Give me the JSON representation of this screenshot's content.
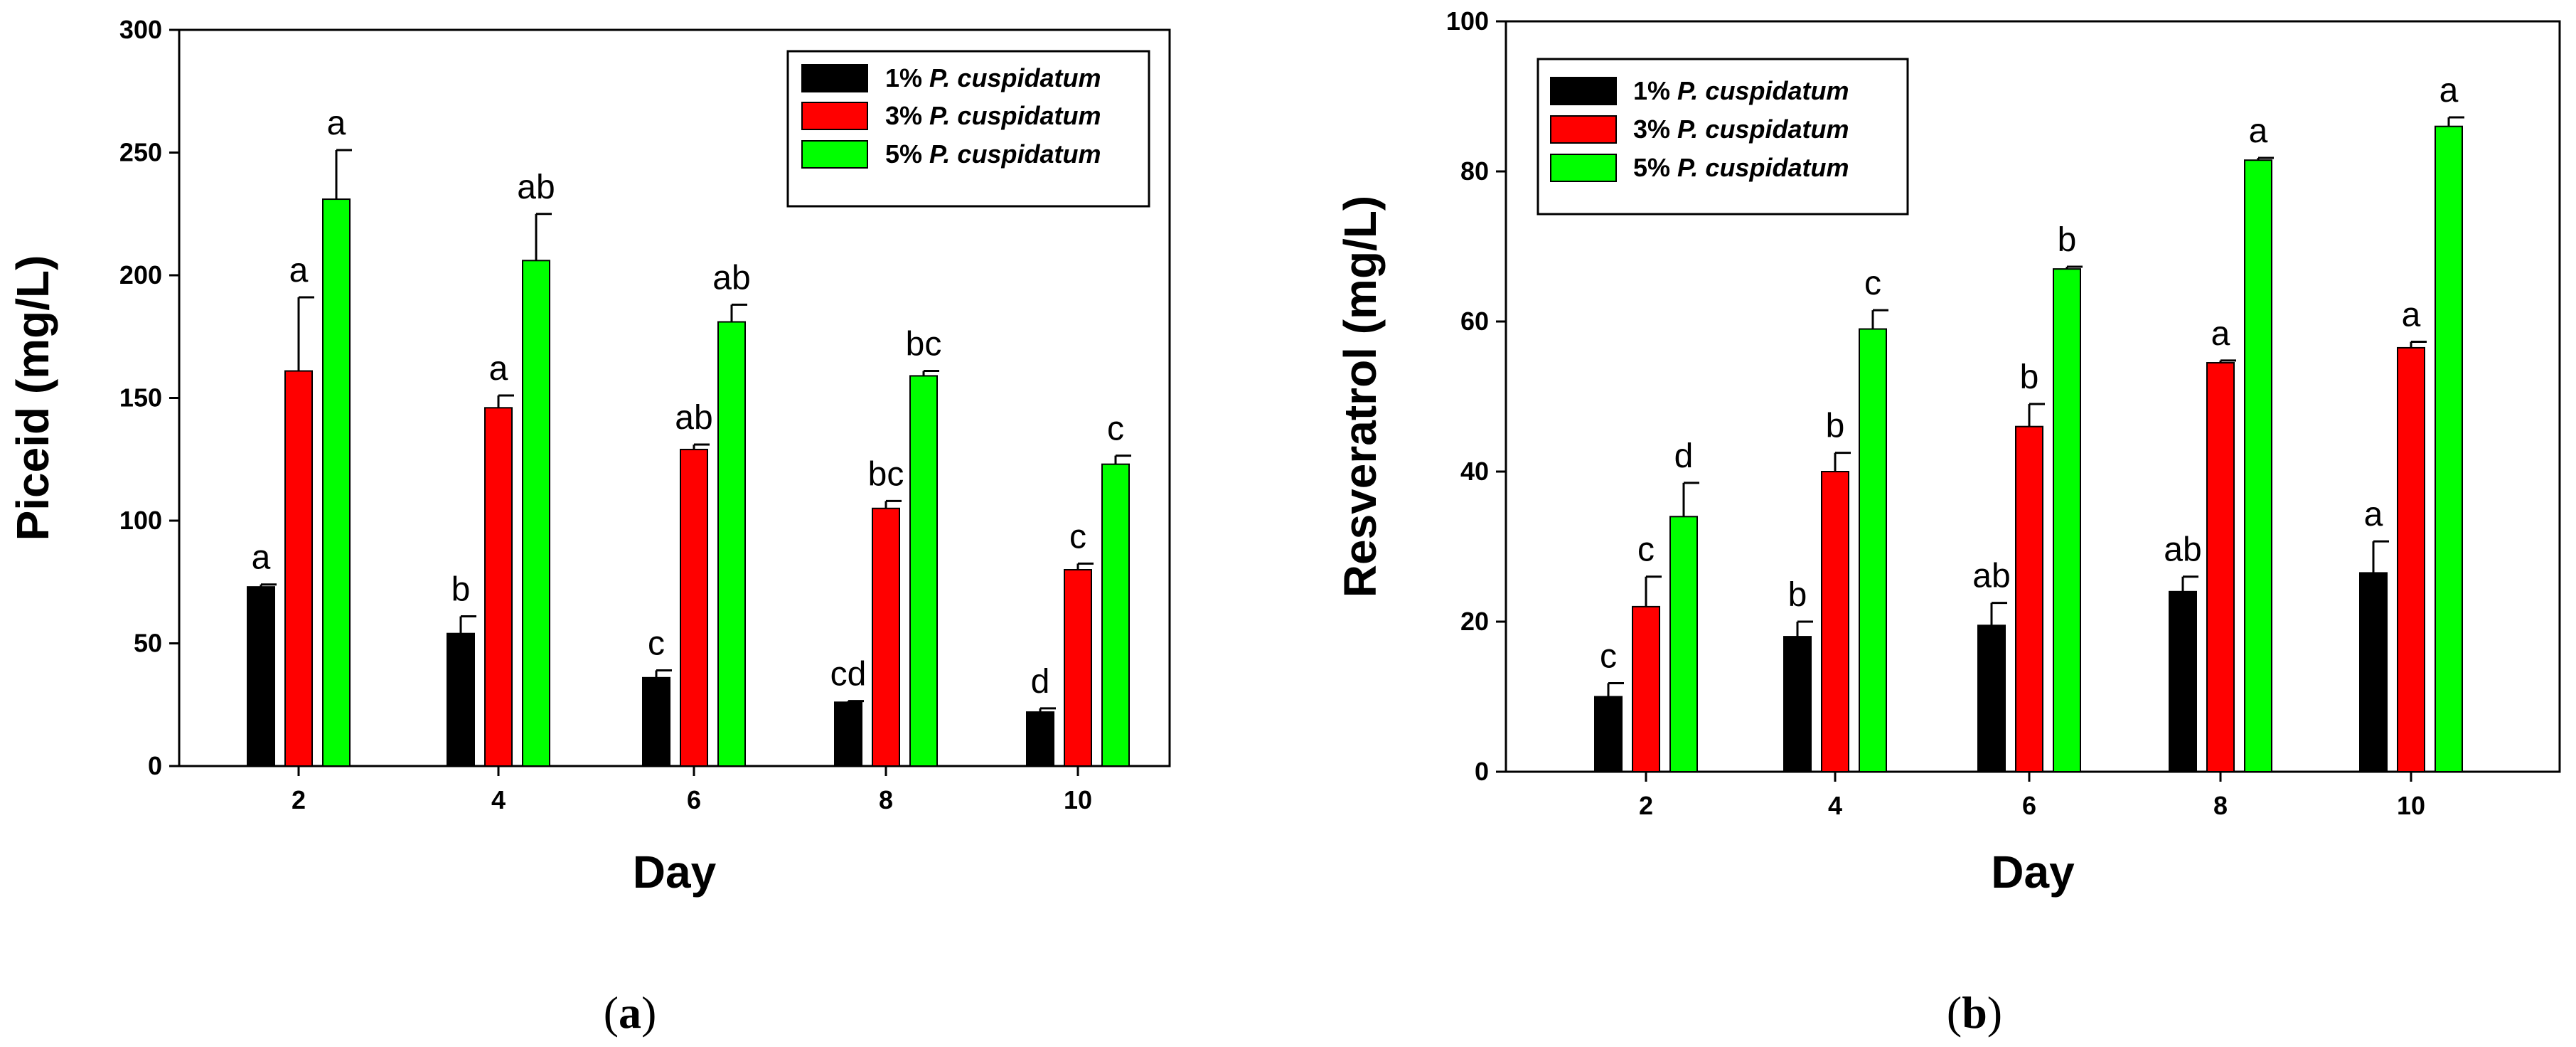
{
  "colors": {
    "one_percent": "#000000",
    "three_percent": "#ff0000",
    "five_percent": "#00ff00"
  },
  "chart_data": [
    {
      "id": "a",
      "type": "bar",
      "panel_prefix": "(",
      "panel_letter": "a",
      "panel_suffix": ")",
      "xlabel": "Day",
      "ylabel": "Piceid (mg/L)",
      "ylim": [
        0,
        300
      ],
      "yticks": [
        0,
        50,
        100,
        150,
        200,
        250,
        300
      ],
      "categories": [
        "2",
        "4",
        "6",
        "8",
        "10"
      ],
      "legend_position": "top-right",
      "series": [
        {
          "name_prefix": "1% ",
          "name_italic": "P. cuspidatum",
          "color_key": "one_percent",
          "values": [
            73,
            54,
            36,
            26,
            22
          ],
          "errors": [
            1,
            7,
            3,
            0.5,
            1.5
          ],
          "letters": [
            "a",
            "b",
            "c",
            "cd",
            "d"
          ]
        },
        {
          "name_prefix": "3% ",
          "name_italic": "P. cuspidatum",
          "color_key": "three_percent",
          "values": [
            161,
            146,
            129,
            105,
            80
          ],
          "errors": [
            30,
            5,
            2,
            3,
            2.5
          ],
          "letters": [
            "a",
            "a",
            "ab",
            "bc",
            "c"
          ]
        },
        {
          "name_prefix": "5% ",
          "name_italic": "P. cuspidatum",
          "color_key": "five_percent",
          "values": [
            231,
            206,
            181,
            159,
            123
          ],
          "errors": [
            20,
            19,
            7,
            2,
            3.5
          ],
          "letters": [
            "a",
            "ab",
            "ab",
            "bc",
            "c"
          ]
        }
      ]
    },
    {
      "id": "b",
      "type": "bar",
      "panel_prefix": "(",
      "panel_letter": "b",
      "panel_suffix": ")",
      "xlabel": "Day",
      "ylabel": "Resveratrol (mg/L)",
      "ylim": [
        0,
        100
      ],
      "yticks": [
        0,
        20,
        40,
        60,
        80,
        100
      ],
      "categories": [
        "2",
        "4",
        "6",
        "8",
        "10"
      ],
      "legend_position": "top-left",
      "series": [
        {
          "name_prefix": "1% ",
          "name_italic": "P. cuspidatum",
          "color_key": "one_percent",
          "values": [
            10,
            18,
            19.5,
            24,
            26.5
          ],
          "errors": [
            1.8,
            2,
            3,
            2,
            4.2
          ],
          "letters": [
            "c",
            "b",
            "ab",
            "ab",
            "a"
          ]
        },
        {
          "name_prefix": "3% ",
          "name_italic": "P. cuspidatum",
          "color_key": "three_percent",
          "values": [
            22,
            40,
            46,
            54.5,
            56.5
          ],
          "errors": [
            4,
            2.5,
            3,
            0.3,
            0.8
          ],
          "letters": [
            "c",
            "b",
            "b",
            "a",
            "a"
          ]
        },
        {
          "name_prefix": "5% ",
          "name_italic": "P. cuspidatum",
          "color_key": "five_percent",
          "values": [
            34,
            59,
            67,
            81.5,
            86
          ],
          "errors": [
            4.5,
            2.5,
            0.3,
            0.3,
            1.2
          ],
          "letters": [
            "d",
            "c",
            "b",
            "a",
            "a"
          ]
        }
      ]
    }
  ]
}
